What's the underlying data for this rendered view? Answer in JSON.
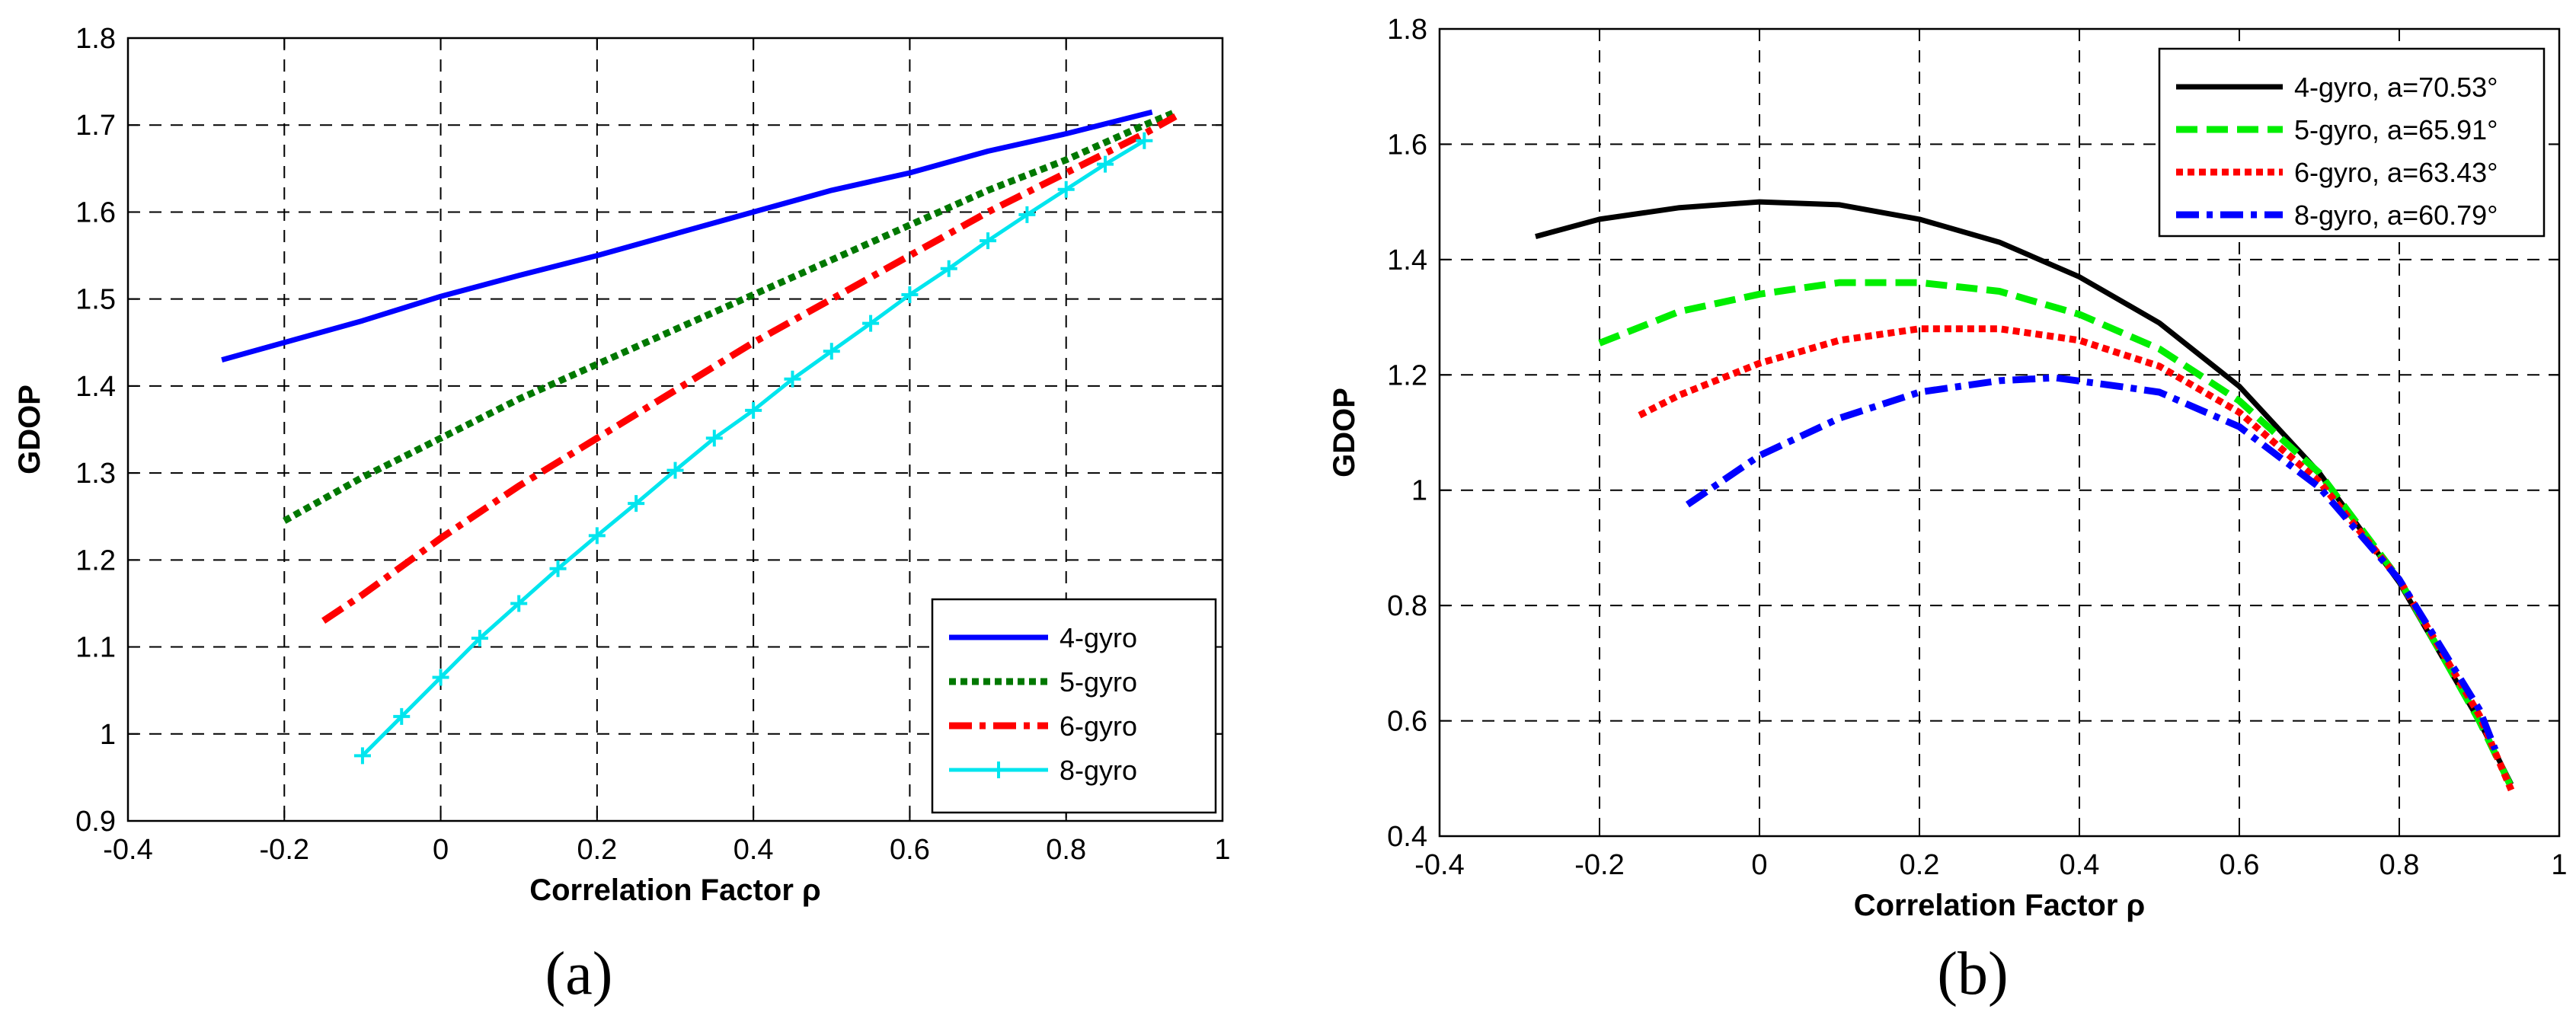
{
  "chart_data": [
    {
      "type": "line",
      "panel_label": "(a)",
      "xlabel": "Correlation Factor ρ",
      "ylabel": "GDOP",
      "xlim": [
        -0.4,
        1
      ],
      "ylim": [
        0.9,
        1.8
      ],
      "xticks": [
        -0.4,
        -0.2,
        0,
        0.2,
        0.4,
        0.6,
        0.8,
        1
      ],
      "xtick_labels": [
        "-0.4",
        "-0.2",
        "0",
        "0.2",
        "0.4",
        "0.6",
        "0.8",
        "1"
      ],
      "yticks": [
        0.9,
        1.0,
        1.1,
        1.2,
        1.3,
        1.4,
        1.5,
        1.6,
        1.7,
        1.8
      ],
      "ytick_labels": [
        "0.9",
        "1",
        "1.1",
        "1.2",
        "1.3",
        "1.4",
        "1.5",
        "1.6",
        "1.7",
        "1.8"
      ],
      "grid": true,
      "legend_position": "bottom-right",
      "series": [
        {
          "name": "4-gyro",
          "color": "#0000ff",
          "style": "solid",
          "x": [
            -0.28,
            -0.2,
            -0.1,
            0,
            0.1,
            0.2,
            0.3,
            0.4,
            0.5,
            0.6,
            0.7,
            0.8,
            0.91
          ],
          "y": [
            1.43,
            1.45,
            1.475,
            1.503,
            1.527,
            1.55,
            1.575,
            1.6,
            1.625,
            1.645,
            1.67,
            1.69,
            1.715
          ]
        },
        {
          "name": "5-gyro",
          "color": "#007800",
          "style": "dotted",
          "x": [
            -0.2,
            -0.1,
            0,
            0.1,
            0.2,
            0.3,
            0.4,
            0.5,
            0.6,
            0.7,
            0.8,
            0.9,
            0.94
          ],
          "y": [
            1.245,
            1.295,
            1.34,
            1.385,
            1.425,
            1.465,
            1.505,
            1.545,
            1.585,
            1.625,
            1.66,
            1.7,
            1.715
          ]
        },
        {
          "name": "6-gyro",
          "color": "#ff0000",
          "style": "dashdot",
          "x": [
            -0.15,
            -0.1,
            0,
            0.1,
            0.2,
            0.3,
            0.4,
            0.5,
            0.6,
            0.7,
            0.8,
            0.9,
            0.94
          ],
          "y": [
            1.13,
            1.16,
            1.225,
            1.285,
            1.34,
            1.395,
            1.45,
            1.5,
            1.55,
            1.6,
            1.645,
            1.69,
            1.71
          ]
        },
        {
          "name": "8-gyro",
          "color": "#00e5ee",
          "style": "solid-plus",
          "x": [
            -0.1,
            -0.05,
            0,
            0.05,
            0.1,
            0.15,
            0.2,
            0.25,
            0.3,
            0.35,
            0.4,
            0.45,
            0.5,
            0.55,
            0.6,
            0.65,
            0.7,
            0.75,
            0.8,
            0.85,
            0.9
          ],
          "y": [
            0.975,
            1.02,
            1.065,
            1.11,
            1.15,
            1.19,
            1.228,
            1.265,
            1.303,
            1.34,
            1.372,
            1.408,
            1.44,
            1.472,
            1.505,
            1.535,
            1.567,
            1.597,
            1.626,
            1.655,
            1.682
          ]
        }
      ]
    },
    {
      "type": "line",
      "panel_label": "(b)",
      "xlabel": "Correlation Factor ρ",
      "ylabel": "GDOP",
      "xlim": [
        -0.4,
        1
      ],
      "ylim": [
        0.4,
        1.8
      ],
      "xticks": [
        -0.4,
        -0.2,
        0,
        0.2,
        0.4,
        0.6,
        0.8,
        1
      ],
      "xtick_labels": [
        "-0.4",
        "-0.2",
        "0",
        "0.2",
        "0.4",
        "0.6",
        "0.8",
        "1"
      ],
      "yticks": [
        0.4,
        0.6,
        0.8,
        1.0,
        1.2,
        1.4,
        1.6,
        1.8
      ],
      "ytick_labels": [
        "0.4",
        "0.6",
        "0.8",
        "1",
        "1.2",
        "1.4",
        "1.6",
        "1.8"
      ],
      "grid": true,
      "legend_position": "top-right",
      "series": [
        {
          "name": "4-gyro, a=70.53°",
          "color": "#000000",
          "style": "solid",
          "x": [
            -0.28,
            -0.2,
            -0.1,
            0,
            0.1,
            0.2,
            0.3,
            0.4,
            0.5,
            0.6,
            0.7,
            0.8,
            0.9,
            0.94
          ],
          "y": [
            1.44,
            1.47,
            1.49,
            1.5,
            1.495,
            1.47,
            1.43,
            1.37,
            1.29,
            1.18,
            1.03,
            0.84,
            0.6,
            0.49
          ]
        },
        {
          "name": "5-gyro, a=65.91°",
          "color": "#00ee00",
          "style": "dashed",
          "x": [
            -0.2,
            -0.1,
            0,
            0.1,
            0.2,
            0.3,
            0.4,
            0.5,
            0.6,
            0.7,
            0.8,
            0.9,
            0.94
          ],
          "y": [
            1.255,
            1.31,
            1.34,
            1.36,
            1.36,
            1.345,
            1.305,
            1.245,
            1.155,
            1.03,
            0.845,
            0.6,
            0.485
          ]
        },
        {
          "name": "6-gyro, a=63.43°",
          "color": "#ff0000",
          "style": "dotted",
          "x": [
            -0.15,
            -0.1,
            0,
            0.1,
            0.2,
            0.3,
            0.4,
            0.5,
            0.6,
            0.7,
            0.8,
            0.9,
            0.94
          ],
          "y": [
            1.13,
            1.165,
            1.22,
            1.26,
            1.28,
            1.28,
            1.26,
            1.215,
            1.135,
            1.015,
            0.845,
            0.61,
            0.48
          ]
        },
        {
          "name": "8-gyro, a=60.79°",
          "color": "#0000ff",
          "style": "dashdot",
          "x": [
            -0.09,
            0,
            0.1,
            0.2,
            0.3,
            0.37,
            0.45,
            0.5,
            0.6,
            0.7,
            0.8,
            0.9,
            0.92
          ],
          "y": [
            0.975,
            1.06,
            1.125,
            1.17,
            1.19,
            1.195,
            1.18,
            1.17,
            1.11,
            1.005,
            0.845,
            0.62,
            0.55
          ]
        }
      ]
    }
  ]
}
